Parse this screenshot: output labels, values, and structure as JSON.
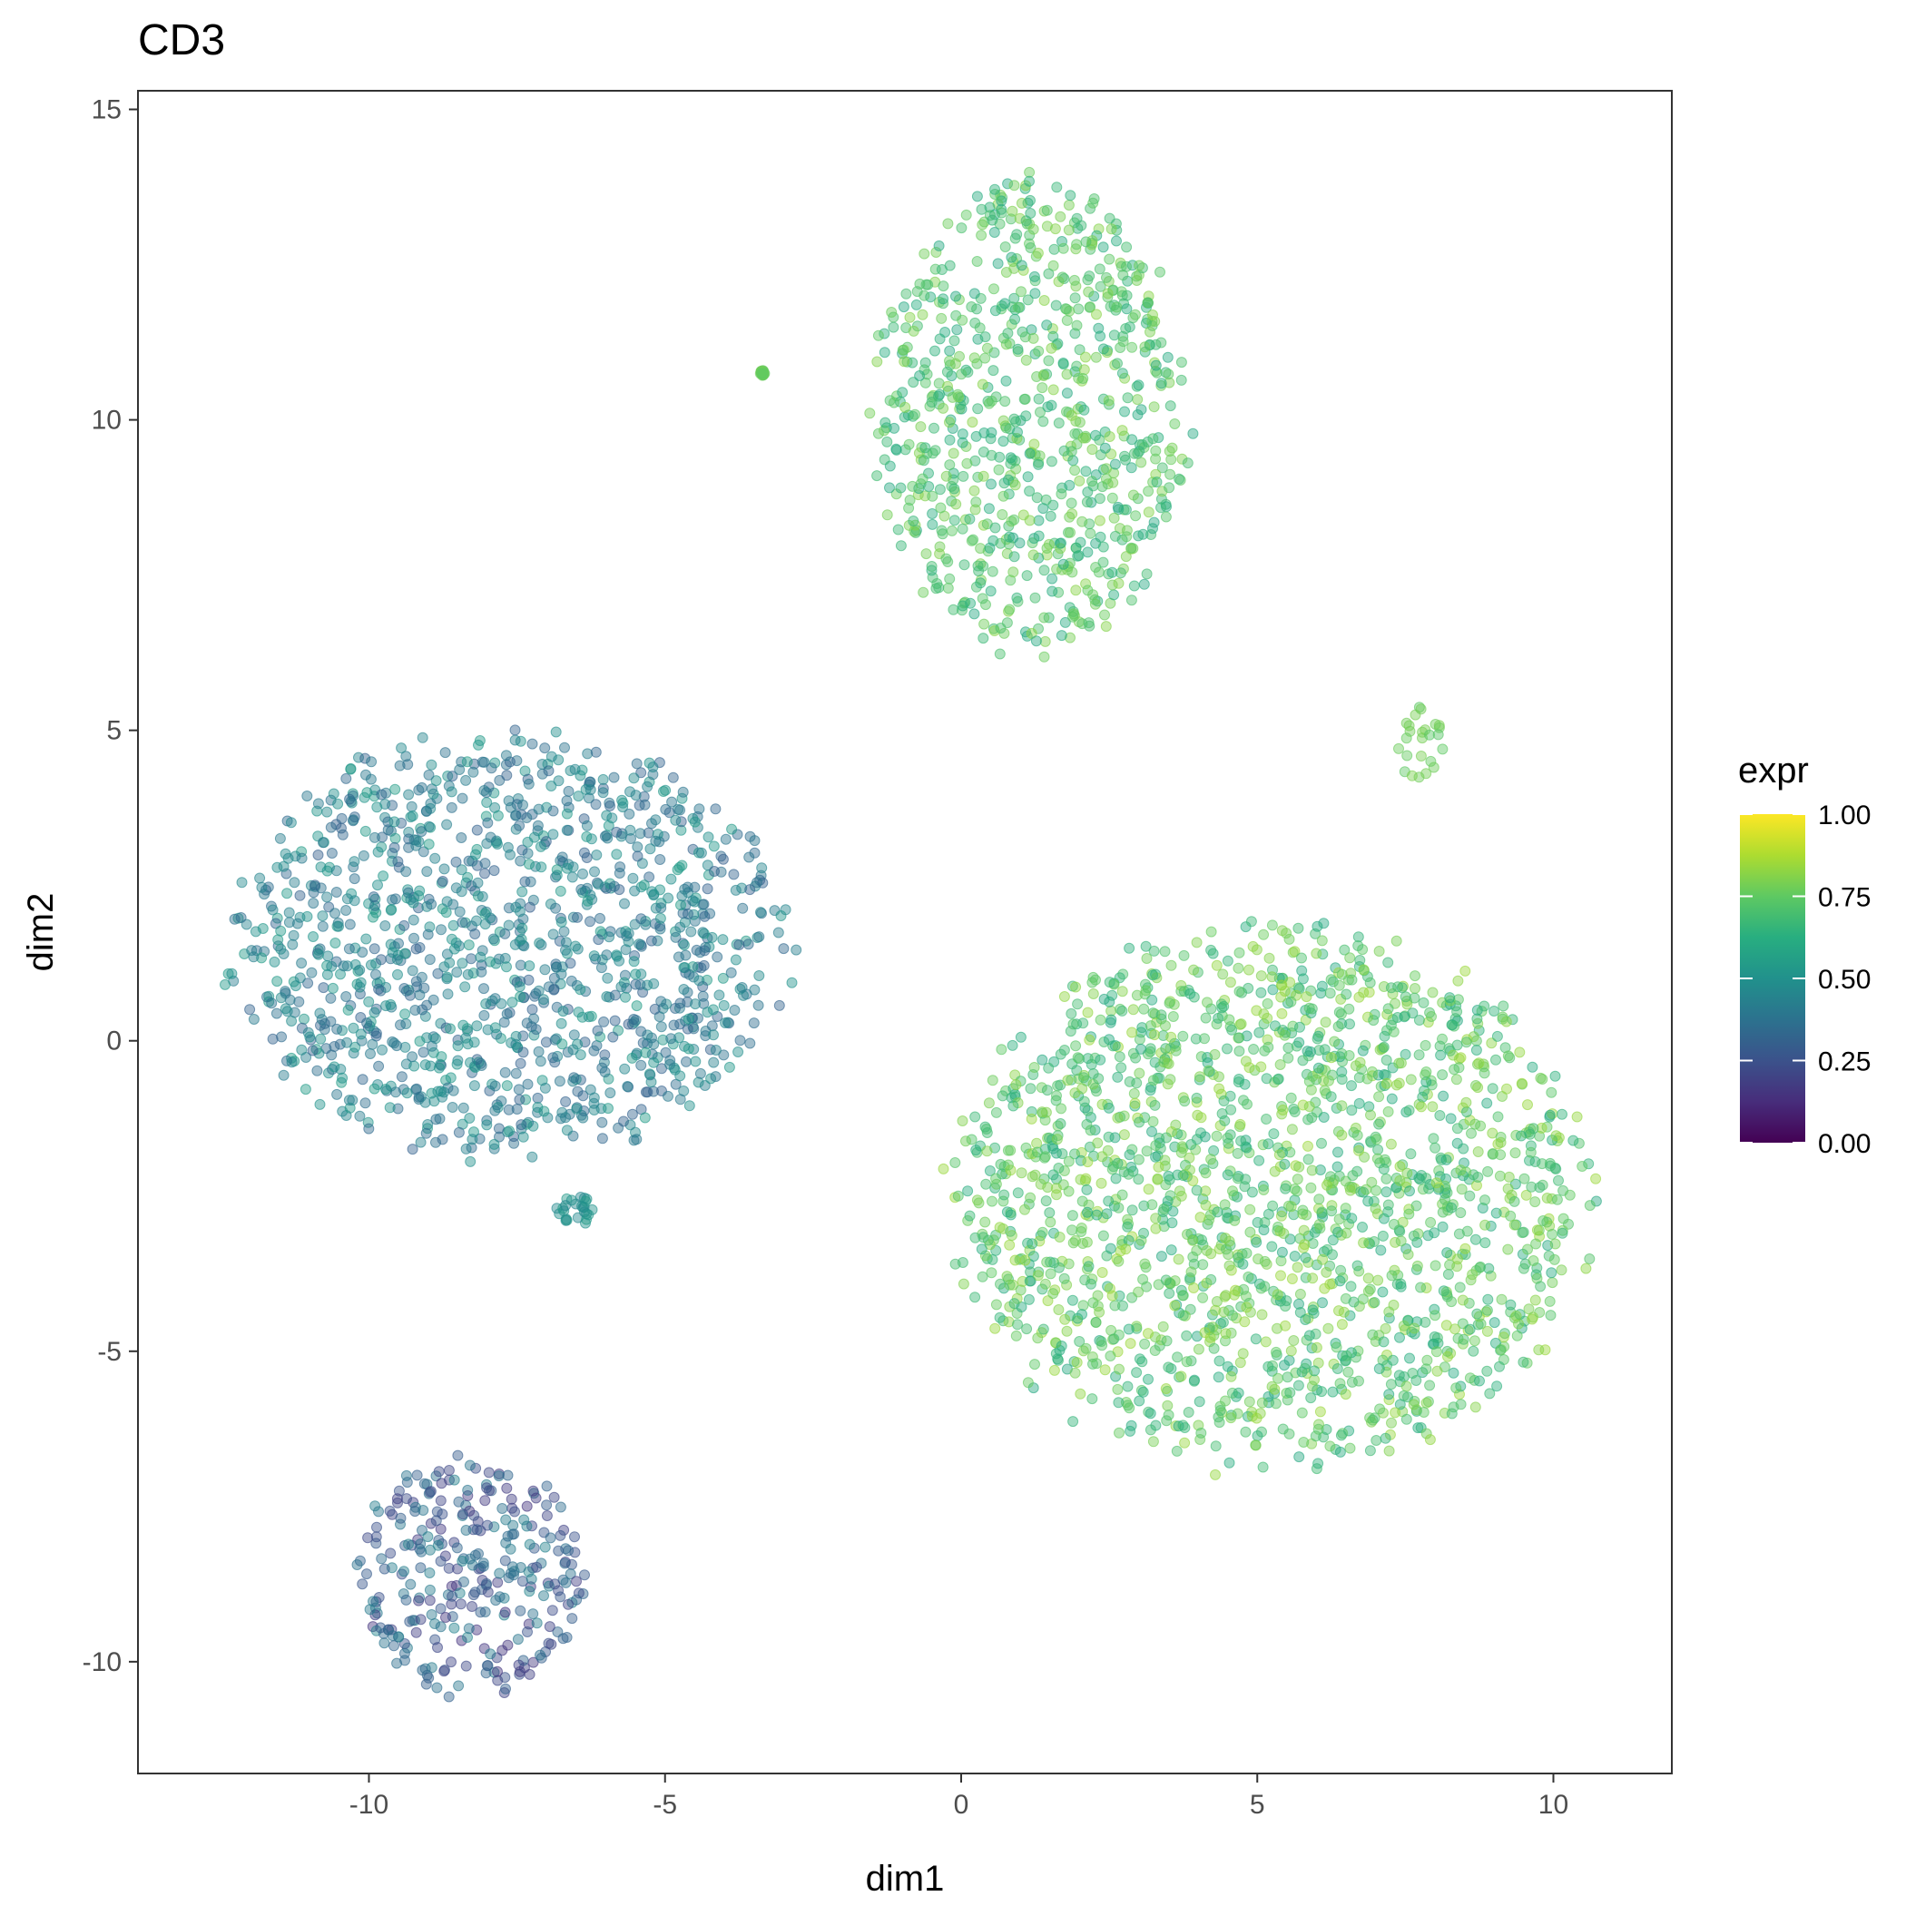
{
  "chart_data": {
    "type": "scatter",
    "title": "CD3",
    "xlabel": "dim1",
    "ylabel": "dim2",
    "xlim": [
      -13.9,
      12.0
    ],
    "ylim": [
      -11.8,
      15.3
    ],
    "x_ticks": [
      -10,
      -5,
      0,
      5,
      10
    ],
    "y_ticks": [
      15,
      10,
      5,
      0,
      -5,
      -10
    ],
    "x_tick_labels": [
      "-10",
      "-5",
      "0",
      "5",
      "10"
    ],
    "y_tick_labels": [
      "15",
      "10",
      "5",
      "0",
      "-5",
      "-10"
    ],
    "grid": false,
    "colorscale": "viridis",
    "legend": {
      "title": "expr",
      "placement": "right",
      "range": [
        0,
        1
      ],
      "ticks": [
        1.0,
        0.75,
        0.5,
        0.25,
        0.0
      ],
      "tick_labels": [
        "1.00",
        "0.75",
        "0.50",
        "0.25",
        "0.00"
      ]
    },
    "clusters": [
      {
        "name": "cluster-top",
        "x_range": [
          -1.6,
          4.0
        ],
        "y_range": [
          6.0,
          14.1
        ],
        "expr_range": [
          0.6,
          0.82
        ]
      },
      {
        "name": "cluster-left-upper",
        "x_range": [
          -12.6,
          -2.7
        ],
        "y_range": [
          -2.1,
          5.1
        ],
        "expr_range": [
          0.3,
          0.55
        ]
      },
      {
        "name": "cluster-left-lower",
        "x_range": [
          -10.4,
          -6.2
        ],
        "y_range": [
          -10.7,
          -6.6
        ],
        "expr_range": [
          0.15,
          0.45
        ]
      },
      {
        "name": "cluster-right-large",
        "x_range": [
          -0.4,
          10.9
        ],
        "y_range": [
          -7.2,
          2.1
        ],
        "expr_range": [
          0.6,
          0.85
        ]
      },
      {
        "name": "satellite-a",
        "x_range": [
          -3.4,
          -3.3
        ],
        "y_range": [
          10.7,
          10.8
        ],
        "expr_range": [
          0.75,
          0.78
        ]
      },
      {
        "name": "satellite-b",
        "x_range": [
          7.3,
          8.2
        ],
        "y_range": [
          4.1,
          5.4
        ],
        "expr_range": [
          0.72,
          0.8
        ]
      },
      {
        "name": "satellite-c",
        "x_range": [
          -6.9,
          -6.1
        ],
        "y_range": [
          -3.0,
          -2.4
        ],
        "expr_range": [
          0.45,
          0.55
        ]
      }
    ]
  }
}
